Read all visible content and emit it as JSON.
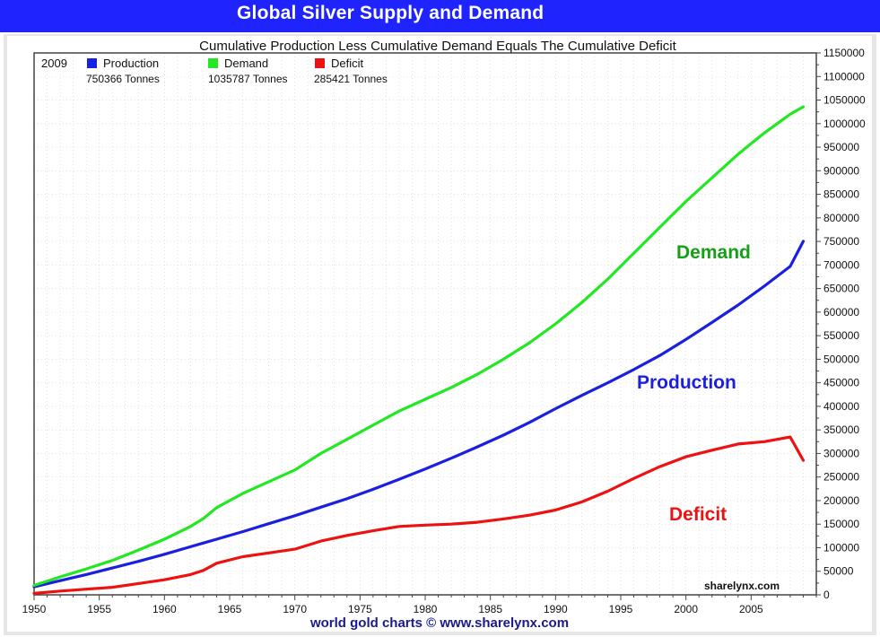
{
  "header": {
    "title": "Global Silver Supply and Demand"
  },
  "chart_data": {
    "type": "line",
    "title": "Cumulative Production Less Cumulative Demand Equals The Cumulative Deficit",
    "year_label": "2009",
    "x": [
      1950,
      1952,
      1954,
      1956,
      1958,
      1960,
      1962,
      1963,
      1964,
      1966,
      1968,
      1970,
      1972,
      1974,
      1976,
      1978,
      1980,
      1982,
      1984,
      1986,
      1988,
      1990,
      1992,
      1994,
      1996,
      1998,
      2000,
      2002,
      2004,
      2006,
      2008,
      2009
    ],
    "series": [
      {
        "name": "Production",
        "color": "#1b1fe0",
        "legend_value": "750366  Tonnes",
        "annotation": "Production",
        "values": [
          17000,
          30000,
          43000,
          57000,
          71000,
          86000,
          102000,
          110000,
          118000,
          134000,
          151000,
          168000,
          186000,
          204000,
          224000,
          245000,
          267000,
          290000,
          314000,
          339000,
          366000,
          395000,
          423000,
          450000,
          478000,
          508000,
          542000,
          578000,
          615000,
          655000,
          697000,
          750366
        ]
      },
      {
        "name": "Demand",
        "color": "#22e822",
        "legend_value": "1035787  Tonnes",
        "annotation": "Demand",
        "values": [
          20000,
          38000,
          55000,
          73000,
          95000,
          118000,
          145000,
          162000,
          185000,
          215000,
          240000,
          265000,
          300000,
          330000,
          360000,
          390000,
          415000,
          440000,
          468000,
          500000,
          535000,
          575000,
          620000,
          670000,
          725000,
          780000,
          835000,
          885000,
          935000,
          980000,
          1020000,
          1035787
        ]
      },
      {
        "name": "Deficit",
        "color": "#ee1111",
        "legend_value": "285421  Tonnes",
        "annotation": "Deficit",
        "values": [
          3000,
          8000,
          12000,
          16000,
          24000,
          32000,
          43000,
          52000,
          67000,
          81000,
          89000,
          97000,
          114000,
          126000,
          136000,
          145000,
          148000,
          150000,
          154000,
          161000,
          169000,
          180000,
          197000,
          220000,
          247000,
          272000,
          293000,
          307000,
          320000,
          325000,
          335000,
          285421
        ]
      }
    ],
    "xlim": [
      1950,
      2010
    ],
    "ylim": [
      0,
      1150000
    ],
    "x_ticks": [
      1950,
      1955,
      1960,
      1965,
      1970,
      1975,
      1980,
      1985,
      1990,
      1995,
      2000,
      2005
    ],
    "y_ticks": [
      0,
      50000,
      100000,
      150000,
      200000,
      250000,
      300000,
      350000,
      400000,
      450000,
      500000,
      550000,
      600000,
      650000,
      700000,
      750000,
      800000,
      850000,
      900000,
      950000,
      1000000,
      1050000,
      1100000,
      1150000
    ],
    "grid": true,
    "legend_position": "top-left",
    "watermark": "sharelynx.com",
    "footer": "world gold charts © www.sharelynx.com"
  }
}
